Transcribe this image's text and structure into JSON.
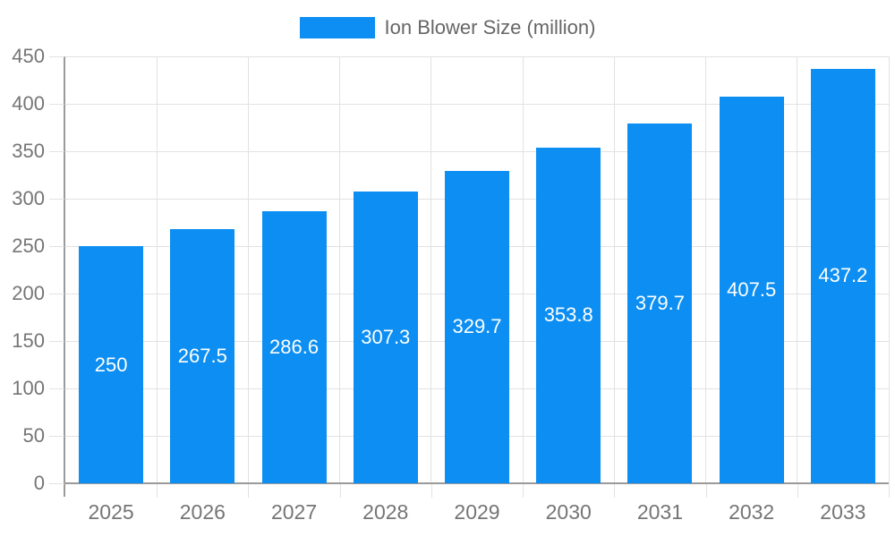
{
  "chart_data": {
    "type": "bar",
    "title": "Ion Blower Size (million)",
    "categories": [
      "2025",
      "2026",
      "2027",
      "2028",
      "2029",
      "2030",
      "2031",
      "2032",
      "2033"
    ],
    "values": [
      250,
      267.5,
      286.6,
      307.3,
      329.7,
      353.8,
      379.7,
      407.5,
      437.2
    ],
    "xlabel": "",
    "ylabel": "",
    "ylim": [
      0,
      450
    ],
    "yticks": [
      0,
      50,
      100,
      150,
      200,
      250,
      300,
      350,
      400,
      450
    ],
    "grid": true,
    "legend_position": "top",
    "bar_label_position": "center",
    "colors": {
      "bar": "#0d8ef2",
      "bar_label": "#ffffff",
      "gridline": "#e2e2e2",
      "axis_line": "#9a9a9a",
      "axis_label": "#757575",
      "legend_text": "#666666",
      "background": "#ffffff"
    }
  }
}
